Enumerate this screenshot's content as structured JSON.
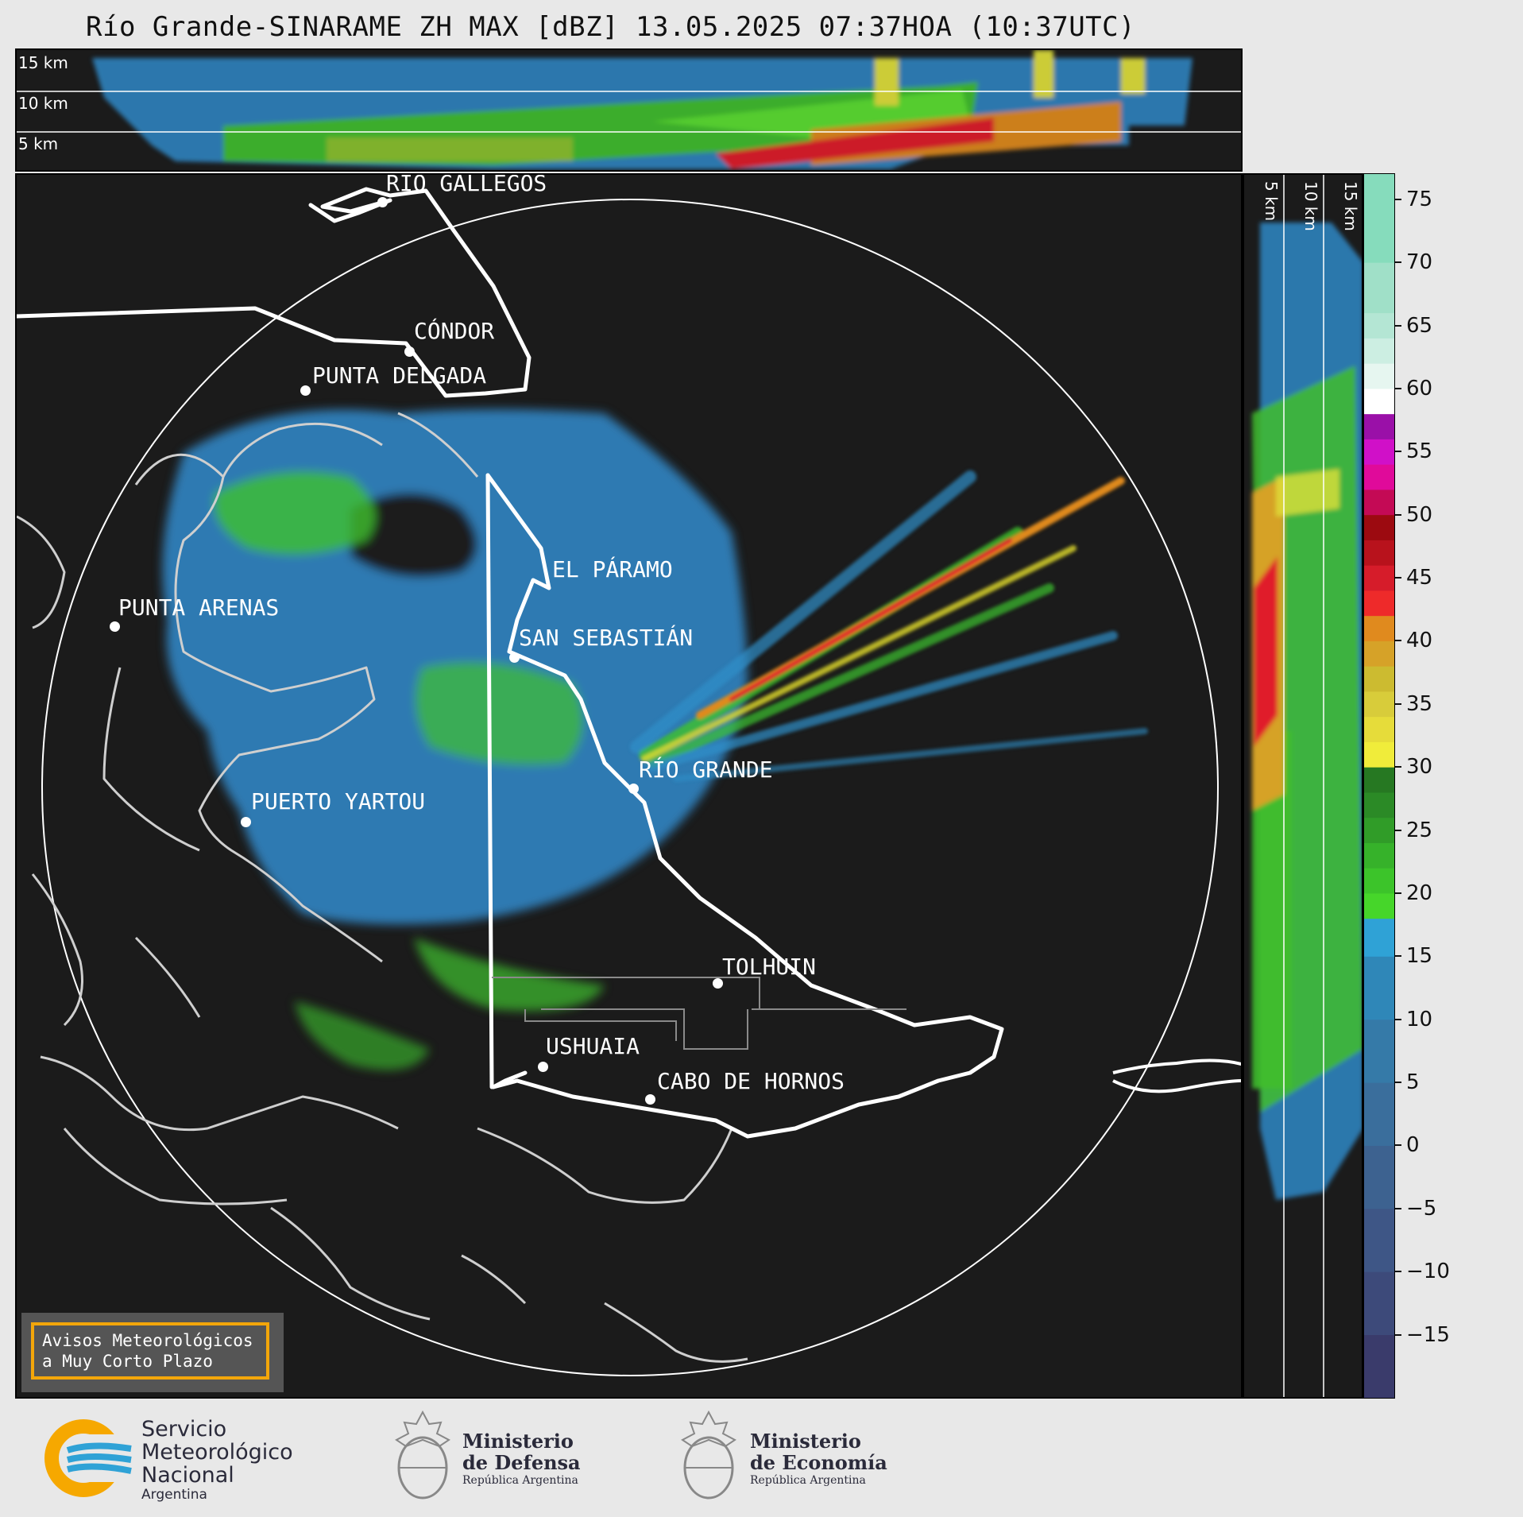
{
  "title": "Río Grande-SINARAME ZH MAX [dBZ] 13.05.2025 07:37HOA (10:37UTC)",
  "top_panel": {
    "km_labels": [
      "15 km",
      "10 km",
      "5 km"
    ]
  },
  "side_panel": {
    "km_labels": [
      "5 km",
      "10 km",
      "15 km"
    ]
  },
  "colorbar": {
    "unit": "dBZ",
    "ticks": [
      "75",
      "70",
      "65",
      "60",
      "55",
      "50",
      "45",
      "40",
      "35",
      "30",
      "25",
      "20",
      "15",
      "10",
      "5",
      "0",
      "−5",
      "−10",
      "−15"
    ],
    "range": [
      -20,
      77
    ],
    "segments": [
      {
        "from": -20,
        "to": -15,
        "color": "#3a3b6b"
      },
      {
        "from": -15,
        "to": -10,
        "color": "#3d4a7a"
      },
      {
        "from": -10,
        "to": -5,
        "color": "#3e5686"
      },
      {
        "from": -5,
        "to": 0,
        "color": "#3d6290"
      },
      {
        "from": 0,
        "to": 5,
        "color": "#3a6e9c"
      },
      {
        "from": 5,
        "to": 10,
        "color": "#357aa8"
      },
      {
        "from": 10,
        "to": 15,
        "color": "#2f87b8"
      },
      {
        "from": 15,
        "to": 18,
        "color": "#2fa2d6"
      },
      {
        "from": 18,
        "to": 20,
        "color": "#46d62a"
      },
      {
        "from": 20,
        "to": 22,
        "color": "#3cc42a"
      },
      {
        "from": 22,
        "to": 24,
        "color": "#36b22a"
      },
      {
        "from": 24,
        "to": 26,
        "color": "#309c28"
      },
      {
        "from": 26,
        "to": 28,
        "color": "#2b8a26"
      },
      {
        "from": 28,
        "to": 30,
        "color": "#267822"
      },
      {
        "from": 30,
        "to": 32,
        "color": "#f0ec3a"
      },
      {
        "from": 32,
        "to": 34,
        "color": "#e6dc3a"
      },
      {
        "from": 34,
        "to": 36,
        "color": "#d8cc3a"
      },
      {
        "from": 36,
        "to": 38,
        "color": "#ccbb30"
      },
      {
        "from": 38,
        "to": 40,
        "color": "#d6a228"
      },
      {
        "from": 40,
        "to": 42,
        "color": "#e08a1e"
      },
      {
        "from": 42,
        "to": 44,
        "color": "#ee2a2a"
      },
      {
        "from": 44,
        "to": 46,
        "color": "#d61c2a"
      },
      {
        "from": 46,
        "to": 48,
        "color": "#b8121c"
      },
      {
        "from": 48,
        "to": 50,
        "color": "#9c0a10"
      },
      {
        "from": 50,
        "to": 52,
        "color": "#c40a55"
      },
      {
        "from": 52,
        "to": 54,
        "color": "#e00a9a"
      },
      {
        "from": 54,
        "to": 56,
        "color": "#d010c8"
      },
      {
        "from": 56,
        "to": 58,
        "color": "#9a10a8"
      },
      {
        "from": 58,
        "to": 60,
        "color": "#ffffff"
      },
      {
        "from": 60,
        "to": 62,
        "color": "#e6f6f0"
      },
      {
        "from": 62,
        "to": 64,
        "color": "#cceee2"
      },
      {
        "from": 64,
        "to": 66,
        "color": "#b4e6d4"
      },
      {
        "from": 66,
        "to": 70,
        "color": "#a0e0c8"
      },
      {
        "from": 70,
        "to": 77,
        "color": "#86dcbc"
      }
    ]
  },
  "cities": [
    {
      "name": "RÍO GALLEGOS",
      "id": "rio-gallegos"
    },
    {
      "name": "CÓNDOR",
      "id": "condor"
    },
    {
      "name": "PUNTA DELGADA",
      "id": "punta-delgada"
    },
    {
      "name": "EL PÁRAMO",
      "id": "el-paramo"
    },
    {
      "name": "PUNTA ARENAS",
      "id": "punta-arenas"
    },
    {
      "name": "SAN SEBASTIÁN",
      "id": "san-sebastian"
    },
    {
      "name": "RÍO GRANDE",
      "id": "rio-grande"
    },
    {
      "name": "PUERTO YARTOU",
      "id": "puerto-yartou"
    },
    {
      "name": "TOLHUIN",
      "id": "tolhuin"
    },
    {
      "name": "USHUAIA",
      "id": "ushuaia"
    },
    {
      "name": "CABO DE HORNOS",
      "id": "cabo-de-hornos"
    }
  ],
  "warning": {
    "line1": "Avisos Meteorológicos",
    "line2": "a Muy Corto Plazo"
  },
  "logos": {
    "smn": {
      "line1": "Servicio",
      "line2": "Meteorológico",
      "line3": "Nacional",
      "line4": "Argentina"
    },
    "defensa": {
      "line1": "Ministerio",
      "line2": "de Defensa",
      "line3": "República Argentina"
    },
    "economia": {
      "line1": "Ministerio",
      "line2": "de Economía",
      "line3": "República Argentina"
    }
  }
}
